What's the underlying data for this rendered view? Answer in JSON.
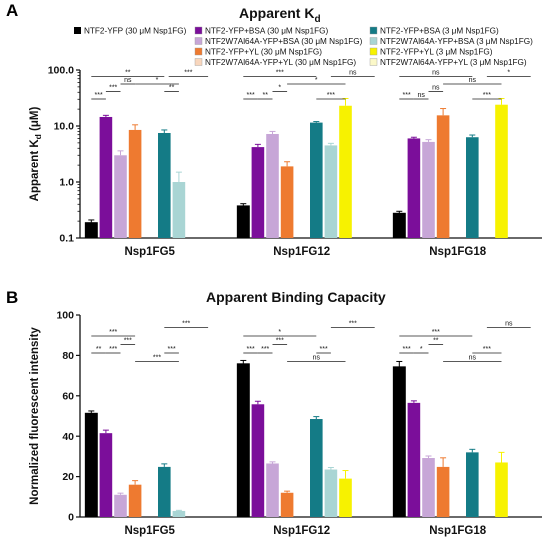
{
  "legend": [
    {
      "label": "NTF2-YFP (30 μM Nsp1FG)",
      "color": "#000000"
    },
    {
      "label": "NTF2-YFP+BSA (30 μM Nsp1FG)",
      "color": "#7b0e9a"
    },
    {
      "label": "NTF2W7Al64A-YFP+BSA (30 μM Nsp1FG)",
      "color": "#c7a6d7"
    },
    {
      "label": "NTF2-YFP+YL (30 μM Nsp1FG)",
      "color": "#ee7a30"
    },
    {
      "label": "NTF2W7Al64A-YFP+YL (30 μM Nsp1FG)",
      "color": "#f8d6bd"
    },
    {
      "label": "NTF2-YFP+BSA (3 μM Nsp1FG)",
      "color": "#147b86"
    },
    {
      "label": "NTF2W7Al64A-YFP+BSA (3 μM Nsp1FG)",
      "color": "#a9d5d4"
    },
    {
      "label": "NTF2-YFP+YL (3 μM Nsp1FG)",
      "color": "#f7f200"
    },
    {
      "label": "NTF2W7Al64A-YFP+YL (3 μM Nsp1FG)",
      "color": "#fbf8c8"
    }
  ],
  "chart_data": [
    {
      "panel": "A",
      "type": "bar",
      "title_main": "Apparent K",
      "title_sub": "d",
      "ylabel_main": "Apparent K",
      "ylabel_sub": "d",
      "ylabel_unit": " (μM)",
      "yscale": "log",
      "ylim": [
        0.1,
        100
      ],
      "yticks": [
        {
          "v": 0.1,
          "label": "0.1"
        },
        {
          "v": 1,
          "label": "1.0"
        },
        {
          "v": 10,
          "label": "10.0"
        },
        {
          "v": 100,
          "label": "100.0"
        }
      ],
      "categories": [
        "Nsp1FG5",
        "Nsp1FG12",
        "Nsp1FG18"
      ],
      "series": [
        {
          "name": "NTF2-YFP (30 μM Nsp1FG)",
          "color": "#000000",
          "values": [
            0.19,
            0.38,
            0.28
          ],
          "errors": [
            0.02,
            0.03,
            0.02
          ]
        },
        {
          "name": "NTF2-YFP+BSA (30 μM Nsp1FG)",
          "color": "#7b0e9a",
          "values": [
            14.5,
            4.2,
            6.0
          ],
          "errors": [
            1.0,
            0.5,
            0.3
          ]
        },
        {
          "name": "NTF2W7Al64A-YFP+BSA (30 μM Nsp1FG)",
          "color": "#c7a6d7",
          "values": [
            3.0,
            7.2,
            5.2
          ],
          "errors": [
            0.6,
            0.8,
            0.5
          ]
        },
        {
          "name": "NTF2-YFP+YL (30 μM Nsp1FG)",
          "color": "#ee7a30",
          "values": [
            8.5,
            1.9,
            15.5
          ],
          "errors": [
            2.0,
            0.4,
            5.0
          ]
        },
        {
          "name": "NTF2W7Al64A-YFP+YL (30 μM Nsp1FG)",
          "color": "#f8d6bd",
          "values": [
            null,
            null,
            null
          ],
          "errors": [
            0,
            0,
            0
          ]
        },
        {
          "name": "NTF2-YFP+BSA (3 μM Nsp1FG)",
          "color": "#147b86",
          "values": [
            7.5,
            11.5,
            6.3
          ],
          "errors": [
            1.0,
            0.5,
            0.6
          ]
        },
        {
          "name": "NTF2W7Al64A-YFP+BSA (3 μM Nsp1FG)",
          "color": "#a9d5d4",
          "values": [
            1.0,
            4.5,
            null
          ],
          "errors": [
            0.5,
            0.4,
            0
          ]
        },
        {
          "name": "NTF2-YFP+YL (3 μM Nsp1FG)",
          "color": "#f7f200",
          "values": [
            null,
            23.0,
            24.0
          ],
          "errors": [
            0,
            8.0,
            7.0
          ]
        },
        {
          "name": "NTF2W7Al64A-YFP+YL (3 μM Nsp1FG)",
          "color": "#fbf8c8",
          "values": [
            null,
            null,
            null
          ],
          "errors": [
            0,
            0,
            0
          ]
        }
      ],
      "annotations": [
        {
          "cat": 0,
          "a": 0,
          "b": 1,
          "text": "***",
          "level": 0
        },
        {
          "cat": 0,
          "a": 1,
          "b": 2,
          "text": "***",
          "level": 1
        },
        {
          "cat": 0,
          "a": 2,
          "b": 3,
          "text": "ns",
          "level": 2
        },
        {
          "cat": 0,
          "a": 0,
          "b": 5,
          "text": "**",
          "level": 3
        },
        {
          "cat": 0,
          "a": 5,
          "b": 6,
          "text": "**",
          "level": 1
        },
        {
          "cat": 0,
          "a": 3,
          "b": 6,
          "text": "*",
          "level": 2
        },
        {
          "cat": 0,
          "a": 6,
          "b": 6,
          "text": "***",
          "level": 3,
          "extend": 1
        },
        {
          "cat": 1,
          "a": 0,
          "b": 1,
          "text": "***",
          "level": 0
        },
        {
          "cat": 1,
          "a": 1,
          "b": 2,
          "text": "**",
          "level": 0
        },
        {
          "cat": 1,
          "a": 2,
          "b": 3,
          "text": "*",
          "level": 1
        },
        {
          "cat": 1,
          "a": 0,
          "b": 5,
          "text": "***",
          "level": 3
        },
        {
          "cat": 1,
          "a": 5,
          "b": 7,
          "text": "***",
          "level": 0
        },
        {
          "cat": 1,
          "a": 3,
          "b": 7,
          "text": "*",
          "level": 2
        },
        {
          "cat": 1,
          "a": 6,
          "b": 7,
          "text": "ns",
          "level": 3,
          "extend": 1
        },
        {
          "cat": 2,
          "a": 0,
          "b": 1,
          "text": "***",
          "level": 0
        },
        {
          "cat": 2,
          "a": 1,
          "b": 2,
          "text": "ns",
          "level": 0
        },
        {
          "cat": 2,
          "a": 2,
          "b": 3,
          "text": "ns",
          "level": 1
        },
        {
          "cat": 2,
          "a": 0,
          "b": 5,
          "text": "ns",
          "level": 3
        },
        {
          "cat": 2,
          "a": 5,
          "b": 7,
          "text": "***",
          "level": 0
        },
        {
          "cat": 2,
          "a": 3,
          "b": 7,
          "text": "ns",
          "level": 2
        },
        {
          "cat": 2,
          "a": 6,
          "b": 7,
          "text": "*",
          "level": 3,
          "extend": 1
        }
      ]
    },
    {
      "panel": "B",
      "type": "bar",
      "title": "Apparent Binding Capacity",
      "ylabel": "Normalized fluorescent intensity",
      "yscale": "linear",
      "ylim": [
        0,
        100
      ],
      "yticks": [
        {
          "v": 0,
          "label": "0"
        },
        {
          "v": 20,
          "label": "20"
        },
        {
          "v": 40,
          "label": "40"
        },
        {
          "v": 60,
          "label": "60"
        },
        {
          "v": 80,
          "label": "80"
        },
        {
          "v": 100,
          "label": "100"
        }
      ],
      "categories": [
        "Nsp1FG5",
        "Nsp1FG12",
        "Nsp1FG18"
      ],
      "series": [
        {
          "name": "NTF2-YFP (30 μM Nsp1FG)",
          "color": "#000000",
          "values": [
            51.5,
            76.0,
            74.5
          ],
          "errors": [
            1.0,
            1.5,
            2.5
          ]
        },
        {
          "name": "NTF2-YFP+BSA (30 μM Nsp1FG)",
          "color": "#7b0e9a",
          "values": [
            41.5,
            55.8,
            56.5
          ],
          "errors": [
            1.5,
            1.5,
            1.0
          ]
        },
        {
          "name": "NTF2W7Al64A-YFP+BSA (30 μM Nsp1FG)",
          "color": "#c7a6d7",
          "values": [
            11.0,
            26.5,
            29.2
          ],
          "errors": [
            0.8,
            0.8,
            1.0
          ]
        },
        {
          "name": "NTF2-YFP+YL (30 μM Nsp1FG)",
          "color": "#ee7a30",
          "values": [
            16.0,
            12.0,
            24.8
          ],
          "errors": [
            2.0,
            0.8,
            4.5
          ]
        },
        {
          "name": "NTF2W7Al64A-YFP+YL (30 μM Nsp1FG)",
          "color": "#f8d6bd",
          "values": [
            null,
            null,
            null
          ],
          "errors": [
            0,
            0,
            0
          ]
        },
        {
          "name": "NTF2-YFP+BSA (3 μM Nsp1FG)",
          "color": "#147b86",
          "values": [
            24.8,
            48.5,
            32.0
          ],
          "errors": [
            1.5,
            1.2,
            1.5
          ]
        },
        {
          "name": "NTF2W7Al64A-YFP+BSA (3 μM Nsp1FG)",
          "color": "#a9d5d4",
          "values": [
            3.0,
            23.5,
            null
          ],
          "errors": [
            0.3,
            1.0,
            0
          ]
        },
        {
          "name": "NTF2-YFP+YL (3 μM Nsp1FG)",
          "color": "#f7f200",
          "values": [
            null,
            19.0,
            27.0
          ],
          "errors": [
            0,
            4.0,
            5.0
          ]
        },
        {
          "name": "NTF2W7Al64A-YFP+YL (3 μM Nsp1FG)",
          "color": "#fbf8c8",
          "values": [
            null,
            null,
            null
          ],
          "errors": [
            0,
            0,
            0
          ]
        }
      ],
      "annotations": [
        {
          "cat": 0,
          "a": 0,
          "b": 1,
          "text": "**",
          "level": 0
        },
        {
          "cat": 0,
          "a": 1,
          "b": 2,
          "text": "***",
          "level": 0
        },
        {
          "cat": 0,
          "a": 0,
          "b": 3,
          "text": "***",
          "level": 2
        },
        {
          "cat": 0,
          "a": 2,
          "b": 3,
          "text": "***",
          "level": 1
        },
        {
          "cat": 0,
          "a": 5,
          "b": 6,
          "text": "***",
          "level": 0
        },
        {
          "cat": 0,
          "a": 5,
          "b": 6,
          "text": "***",
          "level": 3,
          "extend": 1
        },
        {
          "cat": 0,
          "a": 3,
          "b": 6,
          "text": "***",
          "level": -1
        },
        {
          "cat": 1,
          "a": 0,
          "b": 1,
          "text": "***",
          "level": 0
        },
        {
          "cat": 1,
          "a": 1,
          "b": 2,
          "text": "***",
          "level": 0
        },
        {
          "cat": 1,
          "a": 2,
          "b": 3,
          "text": "***",
          "level": 1
        },
        {
          "cat": 1,
          "a": 0,
          "b": 5,
          "text": "*",
          "level": 2
        },
        {
          "cat": 1,
          "a": 5,
          "b": 6,
          "text": "***",
          "level": 0
        },
        {
          "cat": 1,
          "a": 3,
          "b": 7,
          "text": "ns",
          "level": -1
        },
        {
          "cat": 1,
          "a": 6,
          "b": 7,
          "text": "***",
          "level": 3,
          "extend": 1
        },
        {
          "cat": 2,
          "a": 0,
          "b": 1,
          "text": "***",
          "level": 0
        },
        {
          "cat": 2,
          "a": 1,
          "b": 2,
          "text": "*",
          "level": 0
        },
        {
          "cat": 2,
          "a": 2,
          "b": 3,
          "text": "**",
          "level": 1
        },
        {
          "cat": 2,
          "a": 0,
          "b": 5,
          "text": "***",
          "level": 2
        },
        {
          "cat": 2,
          "a": 5,
          "b": 7,
          "text": "***",
          "level": 0
        },
        {
          "cat": 2,
          "a": 3,
          "b": 7,
          "text": "ns",
          "level": -1
        },
        {
          "cat": 2,
          "a": 6,
          "b": 7,
          "text": "ns",
          "level": 3,
          "extend": 1
        }
      ]
    }
  ],
  "panels": {
    "a": {
      "label": "A",
      "title_main": "Apparent K",
      "title_sub": "d"
    },
    "b": {
      "label": "B",
      "title": "Apparent Binding Capacity",
      "ylabel": "Normalized fluorescent intensity"
    }
  }
}
